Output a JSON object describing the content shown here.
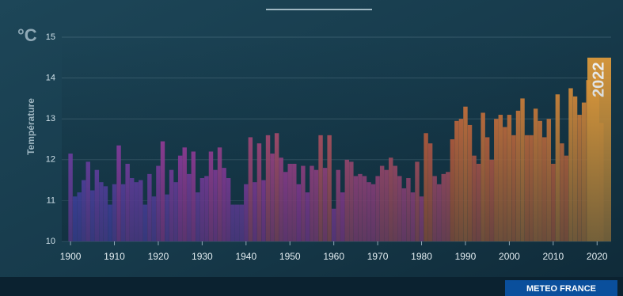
{
  "chart_data": {
    "type": "bar",
    "unit": "°C",
    "y_label": "Température",
    "annotation": "2022",
    "source": "METEO FRANCE",
    "x": [
      1900,
      1901,
      1902,
      1903,
      1904,
      1905,
      1906,
      1907,
      1908,
      1909,
      1910,
      1911,
      1912,
      1913,
      1914,
      1915,
      1916,
      1917,
      1918,
      1919,
      1920,
      1921,
      1922,
      1923,
      1924,
      1925,
      1926,
      1927,
      1928,
      1929,
      1930,
      1931,
      1932,
      1933,
      1934,
      1935,
      1936,
      1937,
      1938,
      1939,
      1940,
      1941,
      1942,
      1943,
      1944,
      1945,
      1946,
      1947,
      1948,
      1949,
      1950,
      1951,
      1952,
      1953,
      1954,
      1955,
      1956,
      1957,
      1958,
      1959,
      1960,
      1961,
      1962,
      1963,
      1964,
      1965,
      1966,
      1967,
      1968,
      1969,
      1970,
      1971,
      1972,
      1973,
      1974,
      1975,
      1976,
      1977,
      1978,
      1979,
      1980,
      1981,
      1982,
      1983,
      1984,
      1985,
      1986,
      1987,
      1988,
      1989,
      1990,
      1991,
      1992,
      1993,
      1994,
      1995,
      1996,
      1997,
      1998,
      1999,
      2000,
      2001,
      2002,
      2003,
      2004,
      2005,
      2006,
      2007,
      2008,
      2009,
      2010,
      2011,
      2012,
      2013,
      2014,
      2015,
      2016,
      2017,
      2018,
      2019,
      2020,
      2021,
      2022
    ],
    "values": [
      12.15,
      11.1,
      11.2,
      11.5,
      11.95,
      11.25,
      11.75,
      11.45,
      11.35,
      10.9,
      11.4,
      12.35,
      11.4,
      11.9,
      11.55,
      11.45,
      11.5,
      10.9,
      11.65,
      11.1,
      11.85,
      12.45,
      11.15,
      11.75,
      11.45,
      12.1,
      12.3,
      11.65,
      12.2,
      11.2,
      11.55,
      11.6,
      12.2,
      11.75,
      12.3,
      11.8,
      11.55,
      10.9,
      10.9,
      10.9,
      11.4,
      12.55,
      11.45,
      12.4,
      11.5,
      12.6,
      12.15,
      12.65,
      12.05,
      11.7,
      11.9,
      11.9,
      11.4,
      11.85,
      11.2,
      11.85,
      11.75,
      12.6,
      11.8,
      12.6,
      10.8,
      11.75,
      11.2,
      12.0,
      11.95,
      11.6,
      11.65,
      11.6,
      11.45,
      11.4,
      11.6,
      11.85,
      11.75,
      12.05,
      11.85,
      11.6,
      11.3,
      11.55,
      11.2,
      11.95,
      11.1,
      12.65,
      12.4,
      11.6,
      11.4,
      11.65,
      11.7,
      12.5,
      12.95,
      13.0,
      13.3,
      12.85,
      12.1,
      11.9,
      13.15,
      12.55,
      12.0,
      13.0,
      13.1,
      12.8,
      13.1,
      12.6,
      13.2,
      13.5,
      12.6,
      12.6,
      13.25,
      12.95,
      12.55,
      13.0,
      11.9,
      13.6,
      12.4,
      12.1,
      13.75,
      13.55,
      13.1,
      13.4,
      13.95,
      13.65,
      14.05,
      12.9,
      14.5
    ],
    "colors": [
      "#4f4fe0",
      "#c23fc0",
      "#ec6a3e",
      "#f29a3a"
    ],
    "highlight_color": "#f0a43c",
    "xlim": [
      1898,
      2023.2
    ],
    "xticks": [
      1900,
      1910,
      1920,
      1930,
      1940,
      1950,
      1960,
      1970,
      1980,
      1990,
      2000,
      2010,
      2020
    ],
    "ylim": [
      10,
      15
    ],
    "yticks": [
      10,
      11,
      12,
      13,
      14,
      15
    ],
    "grid": true
  }
}
